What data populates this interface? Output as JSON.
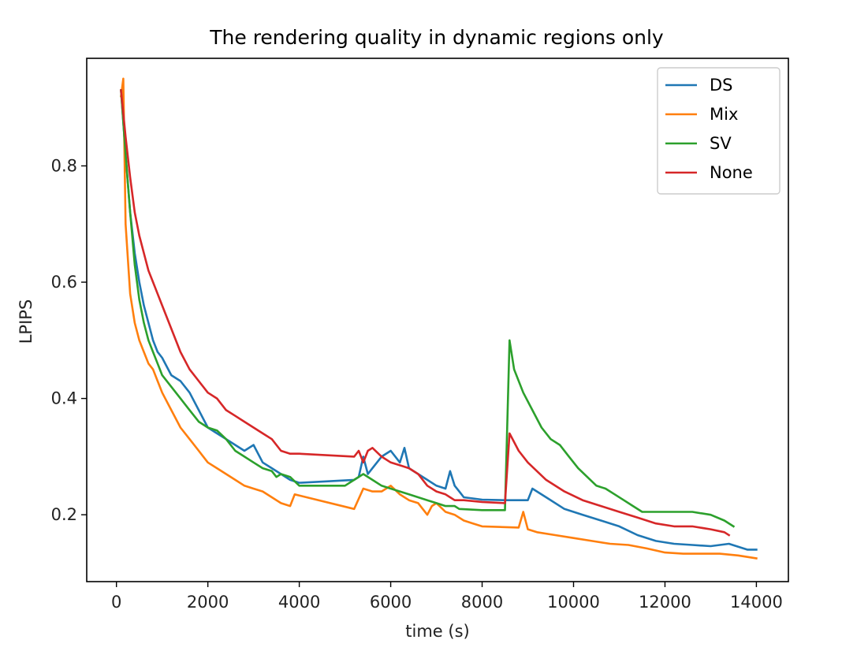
{
  "chart_data": {
    "type": "line",
    "title": "The rendering quality in dynamic regions only",
    "xlabel": "time (s)",
    "ylabel": "LPIPS",
    "xlim": [
      -650,
      14700
    ],
    "ylim": [
      0.085,
      0.985
    ],
    "xticks": [
      0,
      2000,
      4000,
      6000,
      8000,
      10000,
      12000,
      14000
    ],
    "xtick_labels": [
      "0",
      "2000",
      "4000",
      "6000",
      "8000",
      "10000",
      "12000",
      "14000"
    ],
    "yticks": [
      0.2,
      0.4,
      0.6,
      0.8
    ],
    "ytick_labels": [
      "0.2",
      "0.4",
      "0.6",
      "0.8"
    ],
    "grid": false,
    "legend_position": "top-right",
    "series": [
      {
        "name": "DS",
        "color": "#1f77b4",
        "x": [
          100,
          200,
          300,
          400,
          500,
          600,
          700,
          800,
          900,
          1000,
          1200,
          1400,
          1600,
          1800,
          2000,
          2200,
          2400,
          2600,
          2800,
          3000,
          3200,
          3400,
          3600,
          3800,
          4000,
          5200,
          5300,
          5400,
          5500,
          5600,
          5800,
          6000,
          6200,
          6300,
          6400,
          6600,
          6800,
          7000,
          7200,
          7300,
          7400,
          7500,
          7600,
          7800,
          8000,
          8500,
          9000,
          9100,
          9400,
          9800,
          10200,
          10600,
          11000,
          11400,
          11800,
          12200,
          12600,
          13000,
          13400,
          13800,
          14000
        ],
        "values": [
          0.93,
          0.82,
          0.72,
          0.65,
          0.6,
          0.56,
          0.53,
          0.5,
          0.48,
          0.47,
          0.44,
          0.43,
          0.41,
          0.38,
          0.35,
          0.34,
          0.33,
          0.32,
          0.31,
          0.32,
          0.29,
          0.28,
          0.27,
          0.26,
          0.255,
          0.26,
          0.265,
          0.3,
          0.27,
          0.28,
          0.3,
          0.31,
          0.29,
          0.315,
          0.28,
          0.27,
          0.26,
          0.25,
          0.245,
          0.275,
          0.25,
          0.24,
          0.23,
          0.228,
          0.226,
          0.225,
          0.225,
          0.245,
          0.23,
          0.21,
          0.2,
          0.19,
          0.18,
          0.165,
          0.155,
          0.15,
          0.148,
          0.146,
          0.15,
          0.14,
          0.14
        ]
      },
      {
        "name": "Mix",
        "color": "#ff7f0e",
        "x": [
          100,
          150,
          200,
          300,
          400,
          500,
          600,
          700,
          800,
          900,
          1000,
          1200,
          1400,
          1600,
          1800,
          2000,
          2200,
          2400,
          2600,
          2800,
          3000,
          3200,
          3400,
          3600,
          3800,
          3900,
          5200,
          5400,
          5600,
          5800,
          6000,
          6200,
          6400,
          6600,
          6800,
          6900,
          7000,
          7200,
          7400,
          7600,
          7800,
          8000,
          8800,
          8900,
          9000,
          9200,
          9600,
          10000,
          10400,
          10800,
          11200,
          11600,
          12000,
          12400,
          12800,
          13200,
          13600,
          14000
        ],
        "values": [
          0.92,
          0.95,
          0.7,
          0.58,
          0.53,
          0.5,
          0.48,
          0.46,
          0.45,
          0.43,
          0.41,
          0.38,
          0.35,
          0.33,
          0.31,
          0.29,
          0.28,
          0.27,
          0.26,
          0.25,
          0.245,
          0.24,
          0.23,
          0.22,
          0.215,
          0.235,
          0.21,
          0.245,
          0.24,
          0.24,
          0.25,
          0.235,
          0.225,
          0.22,
          0.2,
          0.215,
          0.22,
          0.205,
          0.2,
          0.19,
          0.185,
          0.18,
          0.178,
          0.205,
          0.175,
          0.17,
          0.165,
          0.16,
          0.155,
          0.15,
          0.148,
          0.142,
          0.135,
          0.133,
          0.133,
          0.133,
          0.13,
          0.125
        ]
      },
      {
        "name": "SV",
        "color": "#2ca02c",
        "x": [
          100,
          200,
          300,
          400,
          500,
          600,
          700,
          800,
          900,
          1000,
          1200,
          1400,
          1600,
          1800,
          2000,
          2200,
          2400,
          2600,
          2800,
          3000,
          3200,
          3400,
          3500,
          3600,
          3800,
          4000,
          5000,
          5200,
          5400,
          5600,
          5800,
          6000,
          6200,
          6400,
          6600,
          6800,
          7000,
          7200,
          7400,
          7500,
          8000,
          8500,
          8600,
          8700,
          8900,
          9100,
          9300,
          9500,
          9700,
          9900,
          10100,
          10300,
          10500,
          10700,
          10900,
          11100,
          11300,
          11500,
          11800,
          12200,
          12600,
          13000,
          13300,
          13500
        ],
        "values": [
          0.93,
          0.82,
          0.72,
          0.63,
          0.57,
          0.53,
          0.5,
          0.48,
          0.46,
          0.44,
          0.42,
          0.4,
          0.38,
          0.36,
          0.35,
          0.345,
          0.33,
          0.31,
          0.3,
          0.29,
          0.28,
          0.275,
          0.265,
          0.27,
          0.265,
          0.25,
          0.25,
          0.26,
          0.27,
          0.26,
          0.25,
          0.245,
          0.24,
          0.235,
          0.23,
          0.225,
          0.22,
          0.215,
          0.215,
          0.21,
          0.208,
          0.208,
          0.5,
          0.45,
          0.41,
          0.38,
          0.35,
          0.33,
          0.32,
          0.3,
          0.28,
          0.265,
          0.25,
          0.245,
          0.235,
          0.225,
          0.215,
          0.205,
          0.205,
          0.205,
          0.205,
          0.2,
          0.19,
          0.18
        ]
      },
      {
        "name": "None",
        "color": "#d62728",
        "x": [
          100,
          200,
          300,
          400,
          500,
          600,
          700,
          800,
          900,
          1000,
          1200,
          1400,
          1600,
          1800,
          2000,
          2200,
          2400,
          2600,
          2800,
          3000,
          3200,
          3400,
          3600,
          3800,
          4000,
          5200,
          5300,
          5400,
          5500,
          5600,
          5800,
          6000,
          6200,
          6400,
          6600,
          6800,
          7000,
          7200,
          7300,
          7400,
          7600,
          8000,
          8500,
          8600,
          8800,
          9000,
          9400,
          9800,
          10200,
          10600,
          11000,
          11400,
          11800,
          12200,
          12600,
          13000,
          13300,
          13400
        ],
        "values": [
          0.93,
          0.85,
          0.78,
          0.72,
          0.68,
          0.65,
          0.62,
          0.6,
          0.58,
          0.56,
          0.52,
          0.48,
          0.45,
          0.43,
          0.41,
          0.4,
          0.38,
          0.37,
          0.36,
          0.35,
          0.34,
          0.33,
          0.31,
          0.305,
          0.305,
          0.3,
          0.31,
          0.29,
          0.31,
          0.315,
          0.3,
          0.29,
          0.285,
          0.28,
          0.27,
          0.25,
          0.24,
          0.235,
          0.23,
          0.225,
          0.225,
          0.222,
          0.22,
          0.34,
          0.31,
          0.29,
          0.26,
          0.24,
          0.225,
          0.215,
          0.205,
          0.195,
          0.185,
          0.18,
          0.18,
          0.175,
          0.17,
          0.165
        ]
      }
    ]
  }
}
